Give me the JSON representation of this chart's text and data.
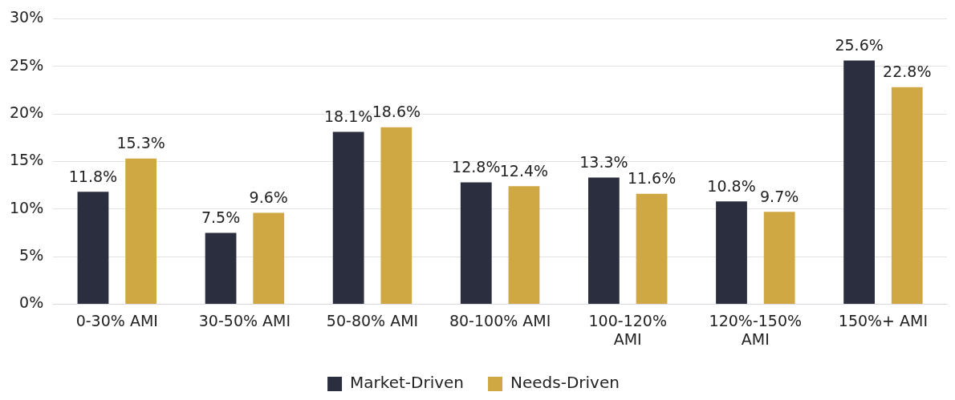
{
  "chart_data": {
    "type": "bar",
    "categories": [
      "0-30% AMI",
      "30-50% AMI",
      "50-80% AMI",
      "80-100% AMI",
      "100-120% AMI",
      "120%-150% AMI",
      "150%+ AMI"
    ],
    "series": [
      {
        "name": "Market-Driven",
        "color": "#2b2e3f",
        "values": [
          11.8,
          7.5,
          18.1,
          12.8,
          13.3,
          10.8,
          25.6
        ],
        "value_labels": [
          "11.8%",
          "7.5%",
          "18.1%",
          "12.8%",
          "13.3%",
          "10.8%",
          "25.6%"
        ]
      },
      {
        "name": "Needs-Driven",
        "color": "#cfa843",
        "values": [
          15.3,
          9.6,
          18.6,
          12.4,
          11.6,
          9.7,
          22.8
        ],
        "value_labels": [
          "15.3%",
          "9.6%",
          "18.6%",
          "12.4%",
          "11.6%",
          "9.7%",
          "22.8%"
        ]
      }
    ],
    "ylim": [
      0,
      30
    ],
    "yticks": [
      {
        "value": 0,
        "label": "0%"
      },
      {
        "value": 5,
        "label": "5%"
      },
      {
        "value": 10,
        "label": "10%"
      },
      {
        "value": 15,
        "label": "15%"
      },
      {
        "value": 20,
        "label": "20%"
      },
      {
        "value": 25,
        "label": "25%"
      },
      {
        "value": 30,
        "label": "30%"
      }
    ],
    "grid": "y",
    "legend": "bottom"
  }
}
